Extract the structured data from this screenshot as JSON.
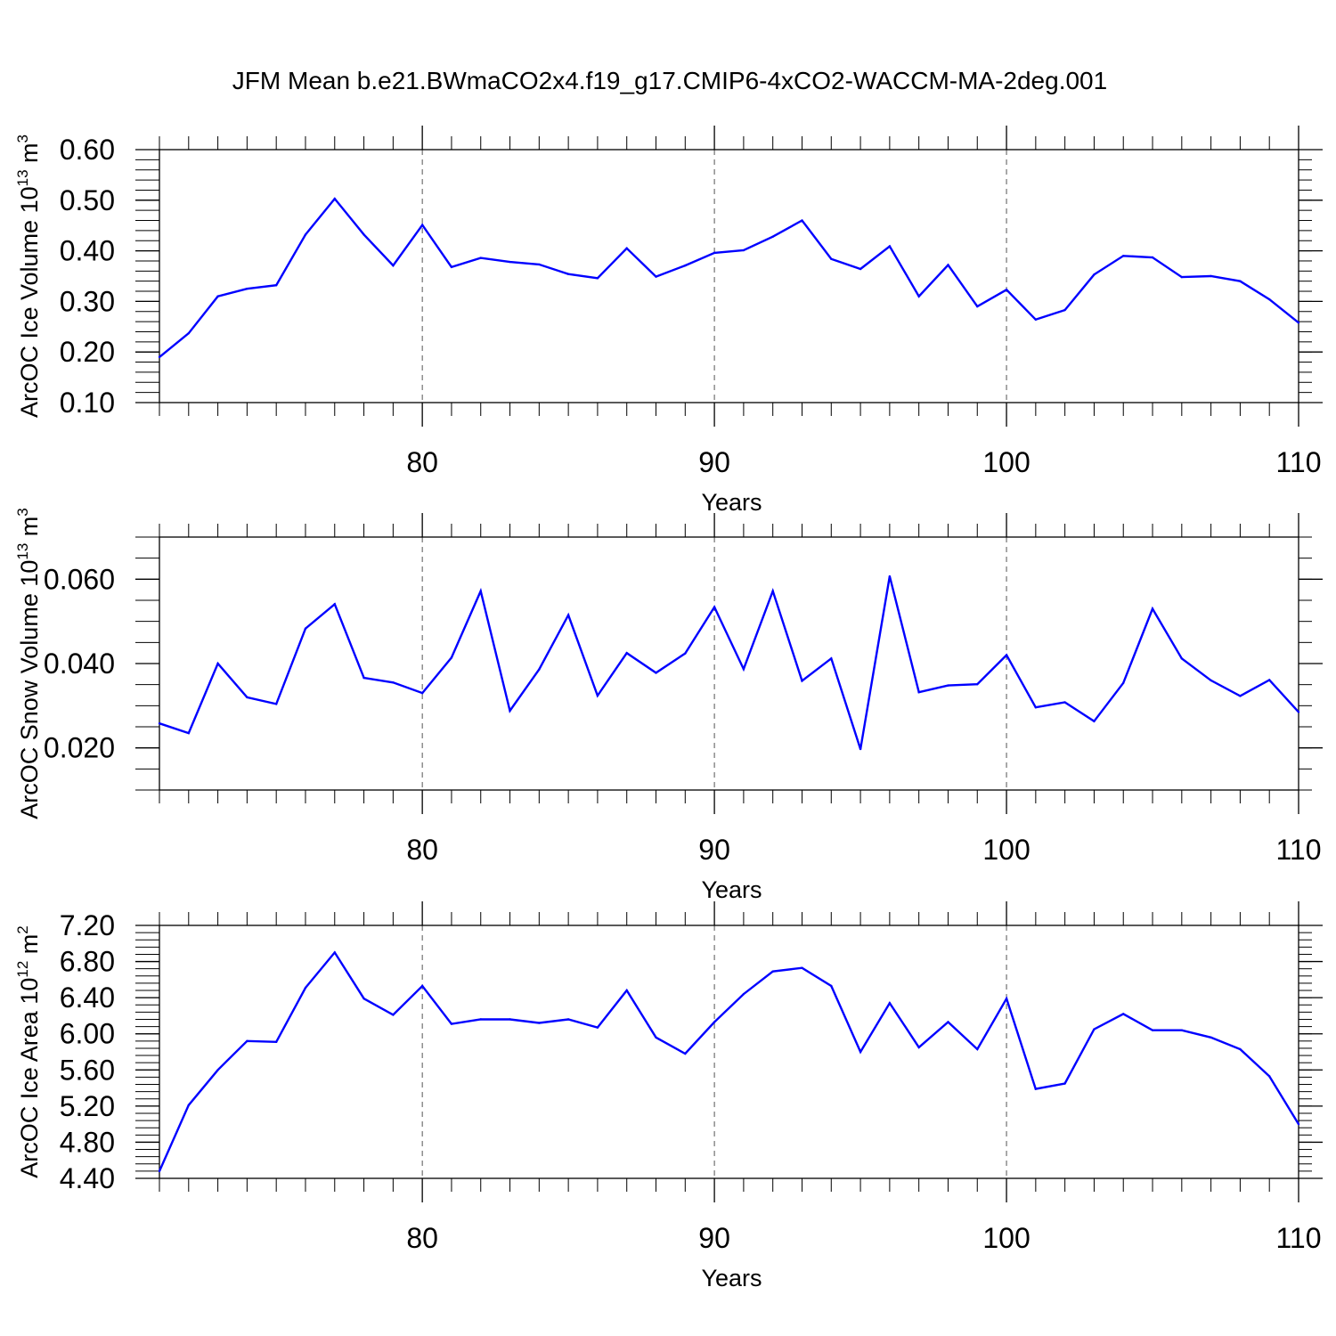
{
  "chart_data": {
    "title": "JFM Mean b.e21.BWmaCO2x4.f19_g17.CMIP6-4xCO2-WACCM-MA-2deg.001",
    "panels": [
      {
        "type": "line",
        "ylabel": {
          "text": "ArcOC Ice Volume 10",
          "sup": "13",
          "unit": " m",
          "unit_sup": "3"
        },
        "xlabel": "Years",
        "xlim": [
          71,
          110
        ],
        "ylim": [
          0.1,
          0.6
        ],
        "yticks": [
          0.1,
          0.2,
          0.3,
          0.4,
          0.5,
          0.6
        ],
        "ytick_labels": [
          "0.10",
          "0.20",
          "0.30",
          "0.40",
          "0.50",
          "0.60"
        ],
        "y_minor_step": 0.02,
        "xticks": [
          80,
          90,
          100,
          110
        ],
        "xtick_labels": [
          "80",
          "90",
          "100",
          "110"
        ],
        "vlines": [
          80,
          90,
          100
        ],
        "color": "#0000ff",
        "x": [
          71,
          72,
          73,
          74,
          75,
          76,
          77,
          78,
          79,
          80,
          81,
          82,
          83,
          84,
          85,
          86,
          87,
          88,
          89,
          90,
          91,
          92,
          93,
          94,
          95,
          96,
          97,
          98,
          99,
          100,
          101,
          102,
          103,
          104,
          105,
          106,
          107,
          108,
          109,
          110
        ],
        "values": [
          0.19,
          0.237,
          0.31,
          0.325,
          0.332,
          0.432,
          0.503,
          0.432,
          0.371,
          0.451,
          0.368,
          0.386,
          0.378,
          0.373,
          0.354,
          0.346,
          0.405,
          0.349,
          0.371,
          0.396,
          0.401,
          0.428,
          0.46,
          0.384,
          0.364,
          0.409,
          0.31,
          0.372,
          0.29,
          0.323,
          0.264,
          0.283,
          0.353,
          0.39,
          0.387,
          0.348,
          0.35,
          0.34,
          0.304,
          0.258
        ]
      },
      {
        "type": "line",
        "ylabel": {
          "text": "ArcOC Snow Volume 10",
          "sup": "13",
          "unit": " m",
          "unit_sup": "3"
        },
        "xlabel": "Years",
        "xlim": [
          71,
          110
        ],
        "ylim": [
          0.01,
          0.07
        ],
        "yticks": [
          0.02,
          0.04,
          0.06
        ],
        "ytick_labels": [
          "0.020",
          "0.040",
          "0.060"
        ],
        "y_minor_step": 0.005,
        "xticks": [
          80,
          90,
          100,
          110
        ],
        "xtick_labels": [
          "80",
          "90",
          "100",
          "110"
        ],
        "vlines": [
          80,
          90,
          100
        ],
        "color": "#0000ff",
        "x": [
          71,
          72,
          73,
          74,
          75,
          76,
          77,
          78,
          79,
          80,
          81,
          82,
          83,
          84,
          85,
          86,
          87,
          88,
          89,
          90,
          91,
          92,
          93,
          94,
          95,
          96,
          97,
          98,
          99,
          100,
          101,
          102,
          103,
          104,
          105,
          106,
          107,
          108,
          109,
          110
        ],
        "values": [
          0.0258,
          0.0235,
          0.04,
          0.032,
          0.0304,
          0.0483,
          0.0541,
          0.0366,
          0.0355,
          0.033,
          0.0414,
          0.0572,
          0.0288,
          0.0386,
          0.0515,
          0.0324,
          0.0425,
          0.0378,
          0.0424,
          0.0534,
          0.0387,
          0.0572,
          0.0359,
          0.0412,
          0.0197,
          0.0607,
          0.0332,
          0.0348,
          0.0351,
          0.042,
          0.0296,
          0.0308,
          0.0263,
          0.0354,
          0.053,
          0.0412,
          0.036,
          0.0323,
          0.0361,
          0.0285
        ]
      },
      {
        "type": "line",
        "ylabel": {
          "text": "ArcOC Ice Area 10",
          "sup": "12",
          "unit": " m",
          "unit_sup": "2"
        },
        "xlabel": "Years",
        "xlim": [
          71,
          110
        ],
        "ylim": [
          4.4,
          7.2
        ],
        "yticks": [
          4.4,
          4.8,
          5.2,
          5.6,
          6.0,
          6.4,
          6.8,
          7.2
        ],
        "ytick_labels": [
          "4.40",
          "4.80",
          "5.20",
          "5.60",
          "6.00",
          "6.40",
          "6.80",
          "7.20"
        ],
        "y_minor_step": 0.08,
        "xticks": [
          80,
          90,
          100,
          110
        ],
        "xtick_labels": [
          "80",
          "90",
          "100",
          "110"
        ],
        "vlines": [
          80,
          90,
          100
        ],
        "color": "#0000ff",
        "x": [
          71,
          72,
          73,
          74,
          75,
          76,
          77,
          78,
          79,
          80,
          81,
          82,
          83,
          84,
          85,
          86,
          87,
          88,
          89,
          90,
          91,
          92,
          93,
          94,
          95,
          96,
          97,
          98,
          99,
          100,
          101,
          102,
          103,
          104,
          105,
          106,
          107,
          108,
          109,
          110
        ],
        "values": [
          4.48,
          5.21,
          5.6,
          5.92,
          5.91,
          6.51,
          6.9,
          6.39,
          6.21,
          6.53,
          6.11,
          6.16,
          6.16,
          6.12,
          6.16,
          6.07,
          6.48,
          5.96,
          5.78,
          6.13,
          6.44,
          6.69,
          6.73,
          6.53,
          5.8,
          6.34,
          5.85,
          6.13,
          5.83,
          6.39,
          5.39,
          5.45,
          6.05,
          6.22,
          6.04,
          6.04,
          5.96,
          5.83,
          5.53,
          5.0
        ]
      }
    ]
  }
}
